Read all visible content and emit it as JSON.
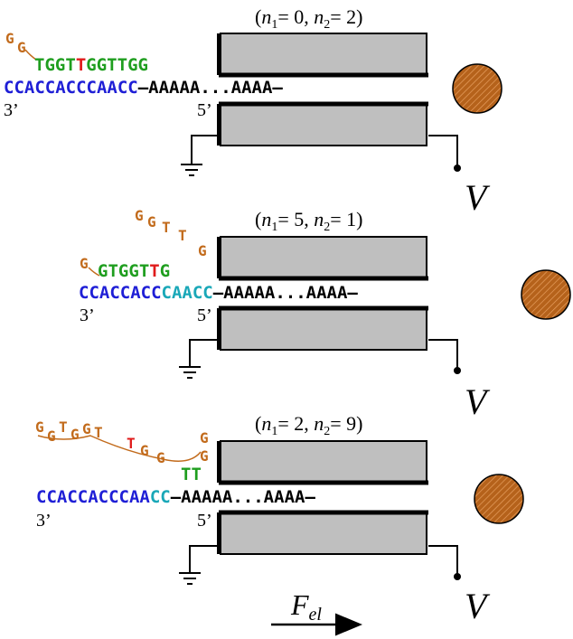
{
  "colors": {
    "blue": "#1f1fd6",
    "green": "#1f9e1f",
    "red": "#e01b1b",
    "cyan": "#1aa8b8",
    "orange": "#c26b1c",
    "black": "#000000",
    "pore_gray": "#bfbfbf",
    "bead": "#b5621b"
  },
  "panels": [
    {
      "label": "(n1= 0, n2= 2)",
      "label_parts": {
        "open": "(",
        "n1": "n",
        "sub1": "1",
        "eq1": "= 0, ",
        "n2": "n",
        "sub2": "2",
        "eq2": "= 2)"
      },
      "loop_bases": [
        "G",
        "G"
      ],
      "top_strand": [
        "T",
        "G",
        "G",
        "T",
        "T",
        "G",
        "G",
        "T",
        "T",
        "G",
        "G"
      ],
      "bottom_blue": "CCACCACCCAACC",
      "bottom_cyan": "",
      "tail": "–AAAAA...AAAA–",
      "three_prime": "3’",
      "five_prime": "5’"
    },
    {
      "label": "(n1= 5, n2= 1)",
      "label_parts": {
        "open": "(",
        "n1": "n",
        "sub1": "1",
        "eq1": "= 5, ",
        "n2": "n",
        "sub2": "2",
        "eq2": "= 1)"
      },
      "loop_bases": [
        "G",
        "G",
        "T",
        "T",
        "G"
      ],
      "top_strand": [
        "G",
        "G",
        "T",
        "G",
        "G",
        "T",
        "T",
        "G"
      ],
      "bottom_blue": "CCACCACC",
      "bottom_cyan": "CAACC",
      "tail": "–AAAAA...AAAA–",
      "three_prime": "3’",
      "five_prime": "5’"
    },
    {
      "label": "(n1= 2, n2= 9)",
      "label_parts": {
        "open": "(",
        "n1": "n",
        "sub1": "1",
        "eq1": "= 2, ",
        "n2": "n",
        "sub2": "2",
        "eq2": "= 9)"
      },
      "loop_bases": [
        "G",
        "G",
        "T",
        "G",
        "G",
        "T",
        "T",
        "G",
        "G",
        "G"
      ],
      "top_strand": [
        "T",
        "T"
      ],
      "bottom_blue": "CCACCACCCAA",
      "bottom_cyan": "CC",
      "tail": "–AAAAA...AAAA–",
      "three_prime": "3’",
      "five_prime": "5’"
    }
  ],
  "voltage": "V",
  "force": {
    "main": "F",
    "sub": "el"
  }
}
